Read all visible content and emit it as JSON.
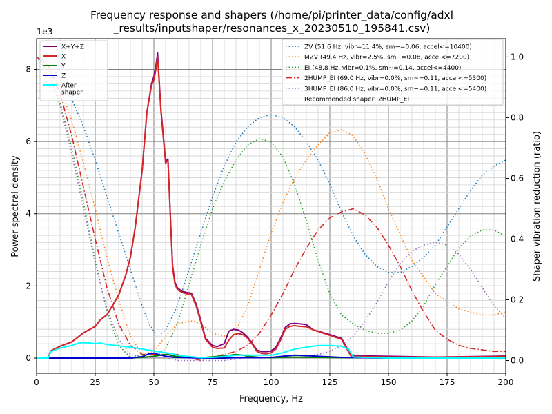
{
  "chart_data": {
    "type": "line",
    "title_line1": "Frequency response and shapers (/home/pi/printer_data/config/adxl",
    "title_line2": "_results/inputshaper/resonances_x_20230510_195841.csv)",
    "xlabel": "Frequency, Hz",
    "ylabel": "Power spectral density",
    "y2label": "Shaper vibration reduction (ratio)",
    "y_multiplier_label": "1e3",
    "xlim": [
      0,
      200
    ],
    "ylim": [
      -0.42,
      8.85
    ],
    "y2lim": [
      -0.042,
      1.06
    ],
    "x_ticks": [
      0,
      25,
      50,
      75,
      100,
      125,
      150,
      175,
      200
    ],
    "y_ticks": [
      0,
      2,
      4,
      6,
      8
    ],
    "y2_ticks": [
      0.0,
      0.2,
      0.4,
      0.6,
      0.8,
      1.0
    ],
    "y2_tick_labels": [
      "0.0",
      "0.2",
      "0.4",
      "0.6",
      "0.8",
      "1.0"
    ],
    "grid": "major and minor",
    "legend_left_placement": "top-left",
    "legend_right_placement": "top-right",
    "psd_series": [
      {
        "name": "X+Y+Z",
        "color": "#800080",
        "width": 2,
        "x": [
          0,
          5,
          6,
          10,
          15,
          20,
          25,
          27,
          30,
          35,
          38,
          40,
          42,
          45,
          47,
          49,
          50,
          51,
          51.6,
          53,
          55,
          56,
          57,
          58,
          59,
          60,
          62,
          64,
          66,
          68,
          70,
          72,
          75,
          77,
          80,
          82,
          84,
          86,
          88,
          90,
          92,
          94,
          96,
          98,
          100,
          102,
          104,
          106,
          108,
          110,
          112,
          115,
          118,
          120,
          125,
          130,
          133,
          134,
          135,
          140,
          150,
          170,
          195,
          200
        ],
        "y": [
          0.0,
          0.02,
          0.2,
          0.33,
          0.45,
          0.7,
          0.88,
          1.05,
          1.2,
          1.75,
          2.3,
          2.8,
          3.6,
          5.2,
          6.8,
          7.6,
          7.8,
          8.15,
          8.45,
          6.9,
          5.45,
          5.52,
          4.0,
          2.55,
          2.1,
          1.95,
          1.85,
          1.82,
          1.8,
          1.5,
          1.05,
          0.55,
          0.35,
          0.32,
          0.4,
          0.75,
          0.8,
          0.78,
          0.7,
          0.58,
          0.4,
          0.22,
          0.18,
          0.18,
          0.2,
          0.3,
          0.55,
          0.85,
          0.95,
          0.96,
          0.95,
          0.93,
          0.78,
          0.75,
          0.65,
          0.55,
          0.2,
          0.1,
          0.08,
          0.06,
          0.05,
          0.03,
          0.05,
          0.06
        ]
      },
      {
        "name": "X",
        "color": "#d62728",
        "width": 2,
        "x": [
          0,
          5,
          6,
          10,
          15,
          20,
          25,
          27,
          30,
          35,
          38,
          40,
          42,
          45,
          47,
          49,
          50,
          51,
          51.6,
          53,
          55,
          56,
          57,
          58,
          59,
          60,
          62,
          64,
          66,
          68,
          70,
          72,
          75,
          77,
          80,
          82,
          84,
          86,
          88,
          90,
          92,
          94,
          96,
          98,
          100,
          102,
          104,
          106,
          108,
          110,
          112,
          115,
          118,
          120,
          125,
          130,
          133,
          134,
          135,
          140,
          150,
          170,
          195,
          200
        ],
        "y": [
          0.0,
          0.02,
          0.2,
          0.33,
          0.45,
          0.7,
          0.88,
          1.05,
          1.2,
          1.75,
          2.3,
          2.8,
          3.6,
          5.2,
          6.8,
          7.55,
          7.7,
          8.05,
          8.35,
          6.85,
          5.4,
          5.48,
          3.95,
          2.5,
          2.05,
          1.9,
          1.82,
          1.78,
          1.76,
          1.45,
          1.0,
          0.52,
          0.3,
          0.27,
          0.28,
          0.5,
          0.65,
          0.68,
          0.65,
          0.55,
          0.38,
          0.18,
          0.13,
          0.12,
          0.15,
          0.25,
          0.5,
          0.8,
          0.88,
          0.9,
          0.88,
          0.87,
          0.78,
          0.74,
          0.63,
          0.52,
          0.17,
          0.06,
          0.05,
          0.04,
          0.03,
          0.03,
          0.04,
          0.05
        ]
      },
      {
        "name": "Y",
        "color": "#008000",
        "width": 2,
        "x": [
          0,
          40,
          45,
          50,
          55,
          56,
          57,
          60,
          65,
          70,
          80,
          85,
          88,
          90,
          95,
          100,
          105,
          110,
          120,
          130,
          140,
          150,
          200
        ],
        "y": [
          0.0,
          0.0,
          0.02,
          0.05,
          0.1,
          0.1,
          0.08,
          0.04,
          0.02,
          0.01,
          0.06,
          0.1,
          0.08,
          0.05,
          0.02,
          0.01,
          0.02,
          0.03,
          0.02,
          0.01,
          0.01,
          0.0,
          0.0
        ]
      },
      {
        "name": "Z",
        "color": "#0000cd",
        "width": 2,
        "x": [
          0,
          40,
          45,
          48,
          50,
          52,
          55,
          58,
          60,
          65,
          70,
          80,
          85,
          90,
          95,
          100,
          105,
          110,
          115,
          120,
          130,
          140,
          150,
          200
        ],
        "y": [
          0.0,
          0.0,
          0.04,
          0.12,
          0.14,
          0.1,
          0.05,
          0.03,
          0.02,
          0.01,
          0.0,
          0.0,
          0.01,
          0.01,
          0.01,
          0.02,
          0.05,
          0.08,
          0.07,
          0.05,
          0.02,
          0.01,
          0.0,
          0.0
        ]
      },
      {
        "name": "After\nshaper",
        "color": "#00ffff",
        "width": 2,
        "x": [
          0,
          5,
          6,
          10,
          15,
          18,
          20,
          23,
          25,
          27,
          30,
          35,
          40,
          45,
          50,
          55,
          58,
          60,
          65,
          70,
          75,
          80,
          85,
          90,
          100,
          105,
          110,
          115,
          120,
          125,
          130,
          133,
          135,
          150,
          200
        ],
        "y": [
          0.0,
          0.0,
          0.18,
          0.28,
          0.35,
          0.42,
          0.43,
          0.42,
          0.4,
          0.42,
          0.38,
          0.34,
          0.3,
          0.25,
          0.2,
          0.15,
          0.12,
          0.08,
          0.04,
          0.01,
          0.02,
          0.04,
          0.08,
          0.08,
          0.08,
          0.15,
          0.25,
          0.3,
          0.35,
          0.35,
          0.33,
          0.25,
          0.03,
          0.0,
          0.0
        ]
      }
    ],
    "shaper_series": [
      {
        "name": "ZV (51.6 Hz, vibr=11.4%, sm~=0.06, accel<=10400)",
        "color": "#1f77b4",
        "dash": "1.5,3",
        "x": [
          0,
          5,
          10,
          15,
          20,
          25,
          30,
          35,
          40,
          45,
          48,
          51.6,
          55,
          60,
          65,
          70,
          75,
          80,
          85,
          90,
          95,
          100,
          105,
          110,
          115,
          120,
          125,
          130,
          135,
          140,
          145,
          150,
          155,
          160,
          165,
          170,
          175,
          180,
          185,
          190,
          195,
          200
        ],
        "y": [
          1.0,
          0.98,
          0.93,
          0.86,
          0.77,
          0.66,
          0.54,
          0.42,
          0.3,
          0.18,
          0.12,
          0.08,
          0.1,
          0.18,
          0.3,
          0.42,
          0.54,
          0.64,
          0.72,
          0.77,
          0.8,
          0.81,
          0.8,
          0.77,
          0.72,
          0.66,
          0.58,
          0.49,
          0.41,
          0.35,
          0.31,
          0.29,
          0.29,
          0.31,
          0.34,
          0.38,
          0.44,
          0.5,
          0.56,
          0.61,
          0.64,
          0.66
        ]
      },
      {
        "name": "MZV (49.4 Hz, vibr=2.5%, sm~=0.08, accel<=7200)",
        "color": "#ff7f0e",
        "dash": "1.5,3",
        "x": [
          0,
          5,
          10,
          15,
          20,
          25,
          30,
          35,
          40,
          45,
          50,
          55,
          60,
          65,
          67,
          70,
          75,
          80,
          85,
          90,
          95,
          100,
          105,
          110,
          115,
          120,
          125,
          130,
          135,
          140,
          145,
          150,
          160,
          170,
          180,
          190,
          195,
          200
        ],
        "y": [
          1.0,
          0.97,
          0.9,
          0.79,
          0.65,
          0.5,
          0.34,
          0.2,
          0.08,
          0.02,
          0.03,
          0.08,
          0.12,
          0.13,
          0.13,
          0.12,
          0.09,
          0.08,
          0.1,
          0.18,
          0.3,
          0.42,
          0.52,
          0.6,
          0.66,
          0.71,
          0.75,
          0.76,
          0.74,
          0.68,
          0.6,
          0.5,
          0.33,
          0.22,
          0.17,
          0.15,
          0.15,
          0.16
        ]
      },
      {
        "name": "EI (48.8 Hz, vibr=0.1%, sm~=0.14, accel<=4400)",
        "color": "#2ca02c",
        "dash": "1.5,3",
        "x": [
          0,
          5,
          10,
          15,
          20,
          25,
          30,
          35,
          40,
          45,
          48.8,
          52,
          55,
          60,
          65,
          70,
          75,
          80,
          85,
          90,
          95,
          100,
          105,
          110,
          115,
          120,
          125,
          130,
          135,
          140,
          145,
          150,
          155,
          160,
          165,
          170,
          175,
          180,
          185,
          190,
          195,
          200
        ],
        "y": [
          1.0,
          0.95,
          0.85,
          0.7,
          0.52,
          0.33,
          0.16,
          0.05,
          0.01,
          0.02,
          0.02,
          0.02,
          0.04,
          0.12,
          0.25,
          0.38,
          0.5,
          0.59,
          0.66,
          0.71,
          0.73,
          0.72,
          0.67,
          0.58,
          0.46,
          0.33,
          0.22,
          0.15,
          0.12,
          0.1,
          0.09,
          0.09,
          0.1,
          0.13,
          0.18,
          0.25,
          0.31,
          0.37,
          0.41,
          0.43,
          0.43,
          0.41
        ]
      },
      {
        "name": "2HUMP_EI (69.0 Hz, vibr=0.0%, sm~=0.11, accel<=5300)",
        "color": "#d62728",
        "dash": "9,3,1.5,3",
        "x": [
          0,
          5,
          10,
          15,
          20,
          25,
          30,
          35,
          40,
          45,
          50,
          55,
          60,
          65,
          70,
          75,
          80,
          85,
          90,
          95,
          100,
          105,
          110,
          115,
          120,
          125,
          130,
          135,
          140,
          145,
          150,
          155,
          160,
          165,
          170,
          175,
          180,
          185,
          190,
          195,
          200
        ],
        "y": [
          1.0,
          0.97,
          0.88,
          0.74,
          0.57,
          0.4,
          0.24,
          0.12,
          0.05,
          0.02,
          0.02,
          0.02,
          0.02,
          0.01,
          0.0,
          0.01,
          0.02,
          0.03,
          0.05,
          0.09,
          0.15,
          0.22,
          0.3,
          0.37,
          0.43,
          0.47,
          0.49,
          0.5,
          0.48,
          0.44,
          0.38,
          0.31,
          0.23,
          0.16,
          0.1,
          0.07,
          0.05,
          0.04,
          0.035,
          0.03,
          0.03
        ]
      },
      {
        "name": "3HUMP_EI (86.0 Hz, vibr=0.0%, sm~=0.11, accel<=5400)",
        "color": "#9467bd",
        "dash": "1.5,3",
        "x": [
          0,
          5,
          10,
          15,
          20,
          25,
          30,
          35,
          40,
          45,
          50,
          55,
          60,
          65,
          70,
          80,
          90,
          100,
          110,
          120,
          125,
          130,
          135,
          140,
          145,
          150,
          155,
          160,
          165,
          170,
          175,
          180,
          185,
          190,
          195,
          200
        ],
        "y": [
          1.0,
          0.95,
          0.84,
          0.68,
          0.5,
          0.32,
          0.17,
          0.07,
          0.02,
          0.01,
          0.01,
          0.01,
          0.0,
          0.0,
          0.0,
          0.0,
          0.01,
          0.01,
          0.01,
          0.02,
          0.03,
          0.05,
          0.08,
          0.13,
          0.19,
          0.26,
          0.32,
          0.36,
          0.38,
          0.39,
          0.38,
          0.35,
          0.3,
          0.24,
          0.18,
          0.14
        ]
      }
    ],
    "recommendation_text": "Recommended shaper: 2HUMP_EI"
  }
}
